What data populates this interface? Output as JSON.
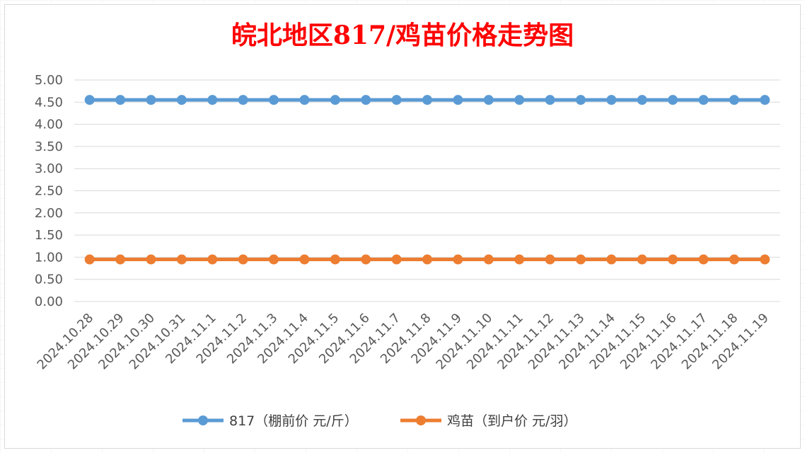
{
  "chart_data": {
    "type": "line",
    "title": "皖北地区817/鸡苗价格走势图",
    "xlabel": "",
    "ylabel": "",
    "categories": [
      "2024.10.28",
      "2024.10.29",
      "2024.10.30",
      "2024.10.31",
      "2024.11.1",
      "2024.11.2",
      "2024.11.3",
      "2024.11.4",
      "2024.11.5",
      "2024.11.6",
      "2024.11.7",
      "2024.11.8",
      "2024.11.9",
      "2024.11.10",
      "2024.11.11",
      "2024.11.12",
      "2024.11.13",
      "2024.11.14",
      "2024.11.15",
      "2024.11.16",
      "2024.11.17",
      "2024.11.18",
      "2024.11.19"
    ],
    "y_ticks": [
      "0.00",
      "0.50",
      "1.00",
      "1.50",
      "2.00",
      "2.50",
      "3.00",
      "3.50",
      "4.00",
      "4.50",
      "5.00"
    ],
    "ylim": [
      0,
      5
    ],
    "grid": true,
    "legend_position": "bottom",
    "series": [
      {
        "name": "817（棚前价 元/斤）",
        "color": "#5b9bd5",
        "values": [
          4.55,
          4.55,
          4.55,
          4.55,
          4.55,
          4.55,
          4.55,
          4.55,
          4.55,
          4.55,
          4.55,
          4.55,
          4.55,
          4.55,
          4.55,
          4.55,
          4.55,
          4.55,
          4.55,
          4.55,
          4.55,
          4.55,
          4.55
        ]
      },
      {
        "name": "鸡苗（到户价 元/羽）",
        "color": "#ed7d31",
        "values": [
          0.95,
          0.95,
          0.95,
          0.95,
          0.95,
          0.95,
          0.95,
          0.95,
          0.95,
          0.95,
          0.95,
          0.95,
          0.95,
          0.95,
          0.95,
          0.95,
          0.95,
          0.95,
          0.95,
          0.95,
          0.95,
          0.95,
          0.95
        ]
      }
    ]
  }
}
